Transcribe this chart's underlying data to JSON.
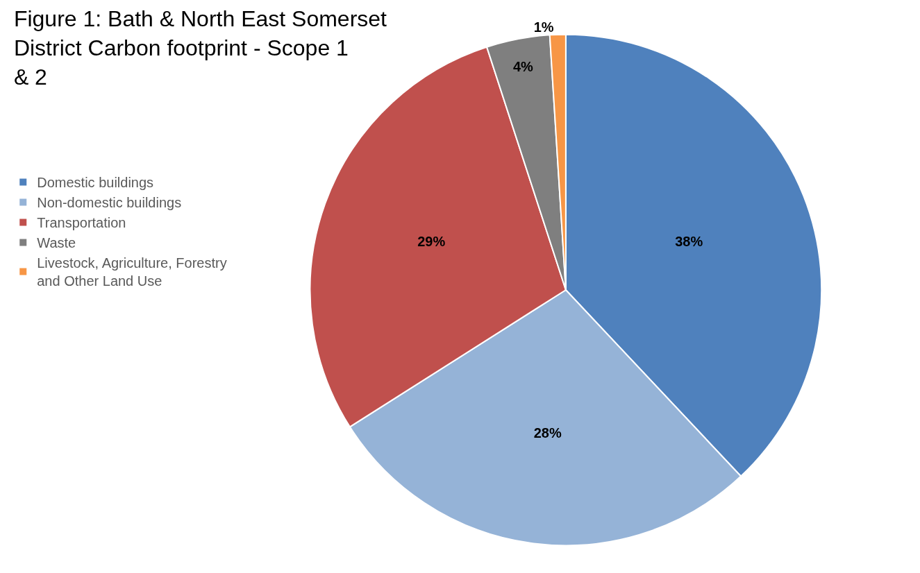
{
  "chart_data": {
    "type": "pie",
    "title": "Figure 1: Bath & North East Somerset District Carbon footprint - Scope 1 & 2",
    "categories": [
      "Domestic buildings",
      "Non-domestic buildings",
      "Transportation",
      "Waste",
      "Livestock, Agriculture, Forestry and Other Land Use"
    ],
    "values": [
      38,
      28,
      29,
      4,
      1
    ],
    "value_labels": [
      "38%",
      "28%",
      "29%",
      "4%",
      "1%"
    ],
    "colors": [
      "#4f81bd",
      "#95b3d7",
      "#c0504d",
      "#7f7f7f",
      "#f79646"
    ],
    "legend": "left"
  }
}
